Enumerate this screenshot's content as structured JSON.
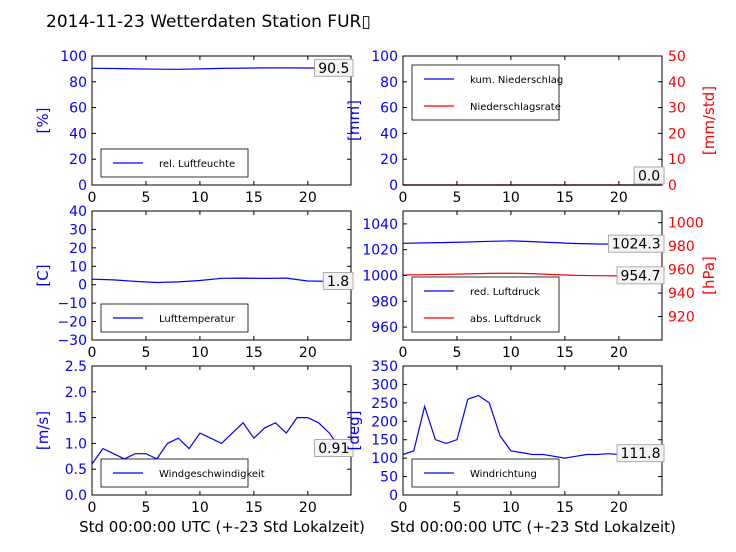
{
  "title": "2014-11-23 Wetterdaten Station FUR▯",
  "xlabel": "Std 00:00:00 UTC (+-23 Std Lokalzeit)",
  "colors": {
    "blue": "#0000ff",
    "red": "#ff0000",
    "black": "#000000"
  },
  "chart_data": [
    {
      "type": "line",
      "ylabel": "[%]",
      "xlim": [
        0,
        24
      ],
      "ylim": [
        0,
        100
      ],
      "xticks": [
        "0",
        "5",
        "10",
        "15",
        "20"
      ],
      "yticks": [
        "0",
        "20",
        "40",
        "60",
        "80",
        "100"
      ],
      "legend": "bottom-left",
      "series": [
        {
          "name": "rel. Luftfeuchte",
          "color": "#0000ff",
          "x": [
            0,
            2,
            4,
            6,
            8,
            10,
            12,
            14,
            16,
            18,
            20,
            22,
            24
          ],
          "y": [
            90.5,
            90.3,
            90.0,
            89.8,
            89.7,
            90.0,
            90.4,
            90.6,
            90.8,
            90.8,
            90.7,
            90.6,
            90.5
          ]
        }
      ],
      "last_value": "90.5"
    },
    {
      "type": "line",
      "ylabel": "[mm]",
      "ylabel2": "[mm/std]",
      "xlim": [
        0,
        24
      ],
      "ylim": [
        0,
        100
      ],
      "ylim2": [
        0,
        50
      ],
      "xticks": [
        "0",
        "5",
        "10",
        "15",
        "20"
      ],
      "yticks": [
        "0",
        "20",
        "40",
        "60",
        "80",
        "100"
      ],
      "yticks2": [
        "0",
        "10",
        "20",
        "30",
        "40",
        "50"
      ],
      "legend": "top-left",
      "series": [
        {
          "name": "kum. Niederschlag",
          "color": "#0000ff",
          "x": [
            0,
            24
          ],
          "y": [
            0,
            0
          ]
        },
        {
          "name": "Niederschlagsrate",
          "color": "#ff0000",
          "x": [
            0,
            24
          ],
          "y": [
            0,
            0
          ],
          "axis": "right"
        }
      ],
      "last_value": "0.0",
      "last_value2": "0.0"
    },
    {
      "type": "line",
      "ylabel": "[C]",
      "xlim": [
        0,
        24
      ],
      "ylim": [
        -30,
        40
      ],
      "xticks": [
        "0",
        "5",
        "10",
        "15",
        "20"
      ],
      "yticks": [
        "−30",
        "−20",
        "−10",
        "0",
        "10",
        "20",
        "30",
        "40"
      ],
      "legend": "bottom-left",
      "series": [
        {
          "name": "Lufttemperatur",
          "color": "#0000ff",
          "x": [
            0,
            2,
            4,
            6,
            8,
            10,
            12,
            14,
            16,
            18,
            20,
            22,
            24
          ],
          "y": [
            3.0,
            2.6,
            1.8,
            1.2,
            1.5,
            2.3,
            3.5,
            3.6,
            3.4,
            3.6,
            2.0,
            1.8,
            1.8
          ]
        }
      ],
      "last_value": "1.8"
    },
    {
      "type": "line",
      "ylabel2": "[hPa]",
      "xlim": [
        0,
        24
      ],
      "ylim": [
        950,
        1050
      ],
      "ylim2": [
        900,
        1010
      ],
      "xticks": [
        "0",
        "5",
        "10",
        "15",
        "20"
      ],
      "yticks": [
        "960",
        "980",
        "1000",
        "1020",
        "1040"
      ],
      "yticks2": [
        "920",
        "940",
        "960",
        "980",
        "1000"
      ],
      "legend": "bottom-left",
      "series": [
        {
          "name": "red. Luftdruck",
          "color": "#0000ff",
          "x": [
            0,
            2,
            4,
            6,
            8,
            10,
            12,
            14,
            16,
            18,
            20,
            22,
            24
          ],
          "y": [
            1025.0,
            1025.3,
            1025.6,
            1026.0,
            1026.5,
            1026.8,
            1026.3,
            1025.5,
            1024.8,
            1024.4,
            1024.3,
            1024.3,
            1024.3
          ]
        },
        {
          "name": "abs. Luftdruck",
          "color": "#ff0000",
          "axis": "right",
          "x": [
            0,
            2,
            4,
            6,
            8,
            10,
            12,
            14,
            16,
            18,
            20,
            22,
            24
          ],
          "y": [
            955.4,
            955.7,
            956.0,
            956.4,
            956.8,
            957.0,
            956.6,
            955.8,
            955.1,
            954.8,
            954.7,
            954.7,
            954.7
          ]
        }
      ],
      "last_value": "1024.3",
      "last_value2": "954.7"
    },
    {
      "type": "line",
      "ylabel": "[m/s]",
      "xlim": [
        0,
        24
      ],
      "ylim": [
        0,
        2.5
      ],
      "xticks": [
        "0",
        "5",
        "10",
        "15",
        "20"
      ],
      "yticks": [
        "0.0",
        "0.5",
        "1.0",
        "1.5",
        "2.0",
        "2.5"
      ],
      "legend": "bottom-left",
      "series": [
        {
          "name": "Windgeschwindigkeit",
          "color": "#0000ff",
          "x": [
            0,
            1,
            2,
            3,
            4,
            5,
            6,
            7,
            8,
            9,
            10,
            11,
            12,
            13,
            14,
            15,
            16,
            17,
            18,
            19,
            20,
            21,
            22,
            23,
            24
          ],
          "y": [
            0.6,
            0.9,
            0.8,
            0.7,
            0.8,
            0.8,
            0.7,
            1.0,
            1.1,
            0.9,
            1.2,
            1.1,
            1.0,
            1.2,
            1.4,
            1.1,
            1.3,
            1.4,
            1.2,
            1.5,
            1.5,
            1.4,
            1.2,
            0.9,
            0.9
          ]
        }
      ],
      "last_value": "0.91"
    },
    {
      "type": "line",
      "ylabel": "[deg]",
      "xlim": [
        0,
        24
      ],
      "ylim": [
        0,
        350
      ],
      "xticks": [
        "0",
        "5",
        "10",
        "15",
        "20"
      ],
      "yticks": [
        "0",
        "50",
        "100",
        "150",
        "200",
        "250",
        "300",
        "350"
      ],
      "legend": "bottom-left",
      "series": [
        {
          "name": "Windrichtung",
          "color": "#0000ff",
          "x": [
            0,
            1,
            2,
            3,
            4,
            5,
            6,
            7,
            8,
            9,
            10,
            11,
            12,
            13,
            14,
            15,
            16,
            17,
            18,
            19,
            20,
            21,
            22,
            23,
            24
          ],
          "y": [
            110,
            120,
            240,
            150,
            140,
            150,
            260,
            270,
            250,
            160,
            120,
            115,
            110,
            110,
            105,
            100,
            105,
            110,
            110,
            112,
            110,
            112,
            111,
            112,
            112
          ]
        }
      ],
      "last_value": "111.8"
    }
  ]
}
